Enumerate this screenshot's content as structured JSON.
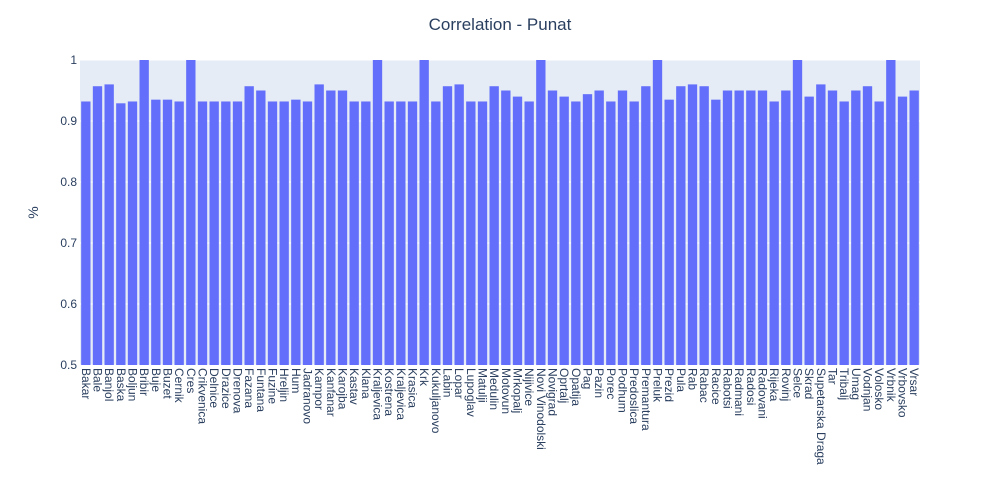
{
  "chart_data": {
    "type": "bar",
    "title": "Correlation - Punat",
    "xlabel": "",
    "ylabel": "%",
    "ylim": [
      0.5,
      1
    ],
    "yticks": [
      0.5,
      0.6,
      0.7,
      0.8,
      0.9,
      1
    ],
    "ytick_labels": [
      "0.5",
      "0.6",
      "0.7",
      "0.8",
      "0.9",
      "1"
    ],
    "grid": true,
    "colors": {
      "bar": "#636efa",
      "plot_bg": "#e5ecf6",
      "grid": "#ffffff",
      "text": "#2a3f5f"
    },
    "categories": [
      "Bakar",
      "Bale",
      "Banjol",
      "Baska",
      "Boljun",
      "Bribir",
      "Buje",
      "Buzet",
      "Cernik",
      "Cres",
      "Crikvenica",
      "Delnice",
      "Drazice",
      "Drenova",
      "Fazana",
      "Funtana",
      "Fuzine",
      "Hreljin",
      "Hum",
      "Jadranovo",
      "Kampor",
      "Kanfanar",
      "Karojba",
      "Kastav",
      "Klana",
      "Kraljevica",
      "Kostrena",
      "Kraljevica",
      "Krasica",
      "Krk",
      "Kukuljanovo",
      "Labin",
      "Lopar",
      "Lupoglav",
      "Matulji",
      "Medulin",
      "Motovun",
      "Mrkopalj",
      "Nijivice",
      "Novi Vinodolski",
      "Novigrad",
      "Oprtalj",
      "Opatija",
      "Pag",
      "Pazin",
      "Porec",
      "Podhum",
      "Predoslica",
      "Premantura",
      "Preluk",
      "Prezid",
      "Pula",
      "Rab",
      "Rabac",
      "Racice",
      "Rabotsi",
      "Radmani",
      "Radosi",
      "Radovani",
      "Rijeka",
      "Rovinj",
      "Selce",
      "Skrad",
      "Supetarska Draga",
      "Tar",
      "Tribalj",
      "Umag",
      "Vodnjan",
      "Volosko",
      "Vrbnik",
      "Vrbovsko",
      "Vrsar"
    ],
    "values": [
      0.932,
      0.957,
      0.96,
      0.929,
      0.932,
      1.0,
      0.935,
      0.935,
      0.932,
      1.0,
      0.932,
      0.932,
      0.932,
      0.932,
      0.957,
      0.95,
      0.932,
      0.932,
      0.935,
      0.932,
      0.96,
      0.95,
      0.95,
      0.932,
      0.932,
      1.0,
      0.932,
      0.932,
      0.932,
      1.0,
      0.932,
      0.957,
      0.96,
      0.932,
      0.932,
      0.957,
      0.95,
      0.94,
      0.932,
      1.0,
      0.95,
      0.94,
      0.932,
      0.944,
      0.95,
      0.932,
      0.95,
      0.932,
      0.957,
      1.0,
      0.935,
      0.957,
      0.96,
      0.957,
      0.935,
      0.95,
      0.95,
      0.95,
      0.95,
      0.932,
      0.95,
      1.0,
      0.94,
      0.96,
      0.95,
      0.932,
      0.95,
      0.957,
      0.932,
      1.0,
      0.94,
      0.95
    ]
  }
}
